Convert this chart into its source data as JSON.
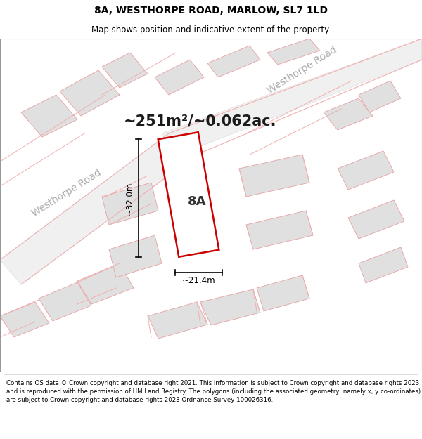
{
  "title": "8A, WESTHORPE ROAD, MARLOW, SL7 1LD",
  "subtitle": "Map shows position and indicative extent of the property.",
  "area_text": "~251m²/~0.062ac.",
  "label_8a": "8A",
  "dim_width": "~21.4m",
  "dim_height": "~32.0m",
  "road_label_left": "Westhorpe Road",
  "road_label_top": "Westhorpe Road",
  "footer": "Contains OS data © Crown copyright and database right 2021. This information is subject to Crown copyright and database rights 2023 and is reproduced with the permission of HM Land Registry. The polygons (including the associated geometry, namely x, y co-ordinates) are subject to Crown copyright and database rights 2023 Ordnance Survey 100026316.",
  "bg_color": "#ffffff",
  "map_bg": "#f8f8f8",
  "property_fill": "#ffffff",
  "property_edge": "#cc0000",
  "building_fill": "#e0e0e0",
  "building_edge": "#e8a0a0",
  "road_fill": "#f0f0f0",
  "road_outline": "#e8a0a0",
  "dim_line_color": "#000000",
  "text_color": "#000000",
  "road_text_color": "#aaaaaa",
  "title_fontsize": 10,
  "subtitle_fontsize": 8.5,
  "area_fontsize": 15,
  "label_fontsize": 13,
  "dim_fontsize": 8.5,
  "road_label_fontsize": 10,
  "footer_fontsize": 6.2
}
